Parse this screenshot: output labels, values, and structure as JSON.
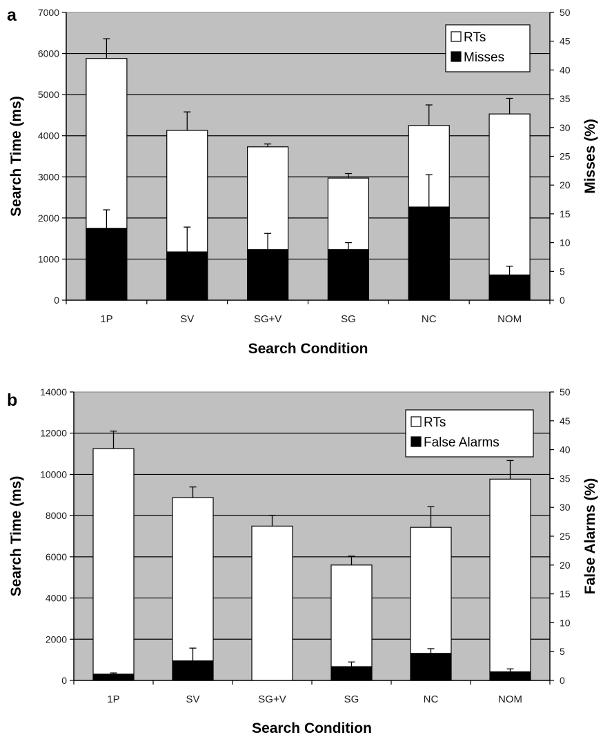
{
  "chart_data": [
    {
      "panel": "a",
      "type": "bar",
      "categories": [
        "1P",
        "SV",
        "SG+V",
        "SG",
        "NC",
        "NOM"
      ],
      "xlabel": "Search Condition",
      "ylabel": "Search Time (ms)",
      "y2label": "Misses (%)",
      "ylim": [
        0,
        7000
      ],
      "yticks": [
        0,
        1000,
        2000,
        3000,
        4000,
        5000,
        6000,
        7000
      ],
      "y2lim": [
        0,
        50
      ],
      "y2ticks": [
        0,
        5,
        10,
        15,
        20,
        25,
        30,
        35,
        40,
        45,
        50
      ],
      "grid": true,
      "legend_position": "top-right",
      "series": [
        {
          "name": "RTs",
          "axis": "left",
          "color": "#ffffff",
          "values": [
            5880,
            4130,
            3730,
            2970,
            4250,
            4530
          ],
          "error": [
            480,
            450,
            70,
            110,
            500,
            380
          ]
        },
        {
          "name": "Misses",
          "axis": "right",
          "color": "#000000",
          "values": [
            12.5,
            8.4,
            8.8,
            8.8,
            16.2,
            4.4
          ],
          "error": [
            3.2,
            4.3,
            2.8,
            1.2,
            5.6,
            1.5
          ]
        }
      ]
    },
    {
      "panel": "b",
      "type": "bar",
      "categories": [
        "1P",
        "SV",
        "SG+V",
        "SG",
        "NC",
        "NOM"
      ],
      "xlabel": "Search Condition",
      "ylabel": "Search Time (ms)",
      "y2label": "False Alarms (%)",
      "ylim": [
        0,
        14000
      ],
      "yticks": [
        0,
        2000,
        4000,
        6000,
        8000,
        10000,
        12000,
        14000
      ],
      "y2lim": [
        0,
        50
      ],
      "y2ticks": [
        0,
        5,
        10,
        15,
        20,
        25,
        30,
        35,
        40,
        45,
        50
      ],
      "grid": true,
      "legend_position": "top-right",
      "series": [
        {
          "name": "RTs",
          "axis": "left",
          "color": "#ffffff",
          "values": [
            11250,
            8870,
            7490,
            5600,
            7430,
            9770
          ],
          "error": [
            850,
            520,
            520,
            430,
            1000,
            900
          ]
        },
        {
          "name": "False Alarms",
          "axis": "right",
          "color": "#000000",
          "values": [
            1.1,
            3.4,
            0,
            2.4,
            4.7,
            1.5
          ],
          "error": [
            0.2,
            2.2,
            0,
            0.8,
            0.8,
            0.5
          ]
        }
      ]
    }
  ]
}
